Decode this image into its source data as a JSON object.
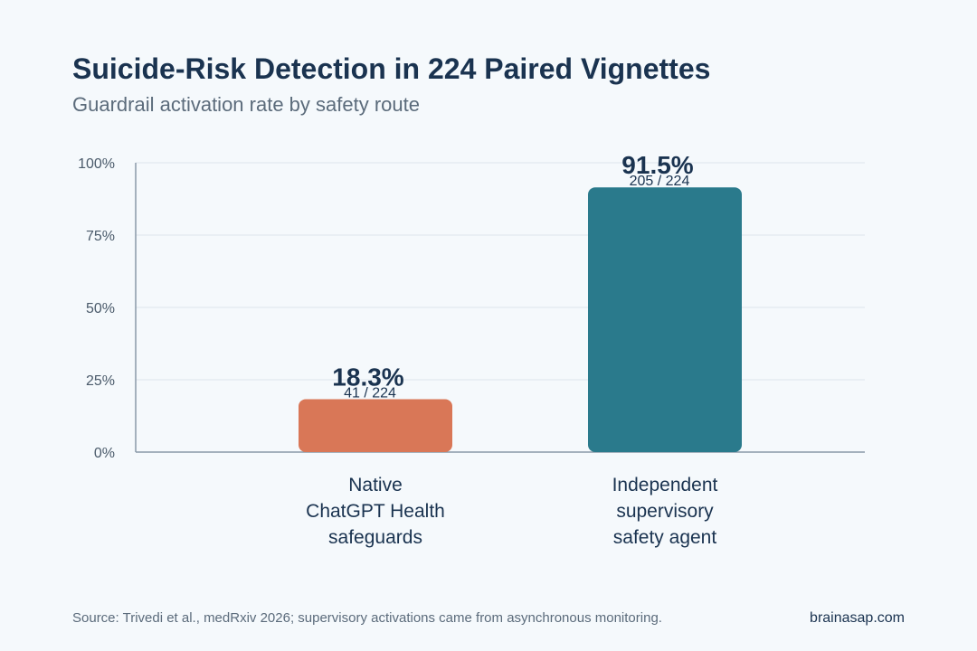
{
  "title": "Suicide-Risk Detection in 224 Paired Vignettes",
  "subtitle": "Guardrail activation rate by safety route",
  "footer": {
    "source": "Source: Trivedi et al., medRxiv 2026; supervisory activations came from asynchronous monitoring.",
    "brand": "brainasap.com"
  },
  "chart_data": {
    "type": "bar",
    "categories": [
      [
        "Native",
        "ChatGPT Health",
        "safeguards"
      ],
      [
        "Independent",
        "supervisory",
        "safety agent"
      ]
    ],
    "values": [
      18.3,
      91.5
    ],
    "value_labels": [
      "18.3%",
      "91.5%"
    ],
    "count_labels": [
      "41 / 224",
      "205 / 224"
    ],
    "colors": [
      "#d97757",
      "#2a7a8c"
    ],
    "ylim": [
      0,
      100
    ],
    "yticks": [
      0,
      25,
      50,
      75,
      100
    ],
    "ytick_labels": [
      "0%",
      "25%",
      "50%",
      "75%",
      "100%"
    ],
    "grid": true,
    "xlabel": "",
    "ylabel": ""
  }
}
